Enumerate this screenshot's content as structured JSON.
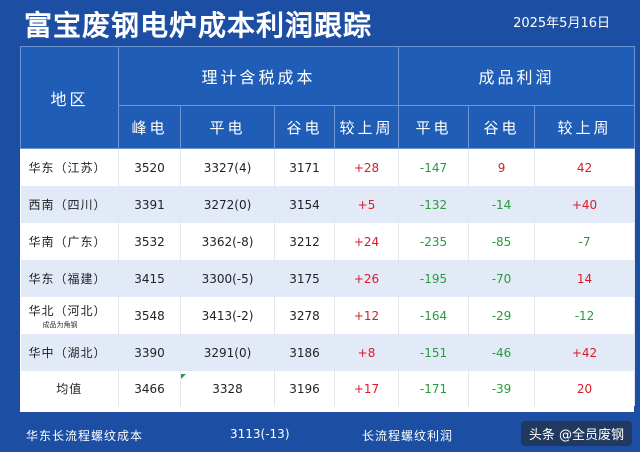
{
  "title": "富宝废钢电炉成本利润跟踪",
  "date": "2025年5月16日",
  "headers": {
    "region": "地区",
    "cost_group": "理计含税成本",
    "profit_group": "成品利润",
    "cost_cols": [
      "峰电",
      "平电",
      "谷电",
      "较上周"
    ],
    "profit_cols": [
      "平电",
      "谷电",
      "较上周"
    ]
  },
  "rows": [
    {
      "name": "华东（江苏）",
      "note": "",
      "peak": "3520",
      "flat": "3327(4)",
      "valley": "3171",
      "cost_chg": "+28",
      "p_flat": "-147",
      "p_valley": "9",
      "p_chg": "42"
    },
    {
      "name": "西南（四川）",
      "note": "",
      "peak": "3391",
      "flat": "3272(0)",
      "valley": "3154",
      "cost_chg": "+5",
      "p_flat": "-132",
      "p_valley": "-14",
      "p_chg": "+40"
    },
    {
      "name": "华南（广东）",
      "note": "",
      "peak": "3532",
      "flat": "3362(-8)",
      "valley": "3212",
      "cost_chg": "+24",
      "p_flat": "-235",
      "p_valley": "-85",
      "p_chg": "-7"
    },
    {
      "name": "华东（福建）",
      "note": "",
      "peak": "3415",
      "flat": "3300(-5)",
      "valley": "3175",
      "cost_chg": "+26",
      "p_flat": "-195",
      "p_valley": "-70",
      "p_chg": "14"
    },
    {
      "name": "华北（河北）",
      "note": "成品为角钢",
      "peak": "3548",
      "flat": "3413(-2)",
      "valley": "3278",
      "cost_chg": "+12",
      "p_flat": "-164",
      "p_valley": "-29",
      "p_chg": "-12"
    },
    {
      "name": "华中（湖北）",
      "note": "",
      "peak": "3390",
      "flat": "3291(0)",
      "valley": "3186",
      "cost_chg": "+8",
      "p_flat": "-151",
      "p_valley": "-46",
      "p_chg": "+42"
    }
  ],
  "avg": {
    "name": "均值",
    "peak": "3466",
    "flat": "3328",
    "valley": "3196",
    "cost_chg": "+17",
    "p_flat": "-171",
    "p_valley": "-39",
    "p_chg": "20"
  },
  "footer": {
    "left_label": "华东长流程螺纹成本",
    "left_value": "3113(-13)",
    "right_label": "长流程螺纹利润"
  },
  "watermark": "头条 @全员废钢",
  "colors": {
    "header_bg": "#1f5db6",
    "positive": "#d81b2a",
    "negative": "#2a9a3c"
  }
}
